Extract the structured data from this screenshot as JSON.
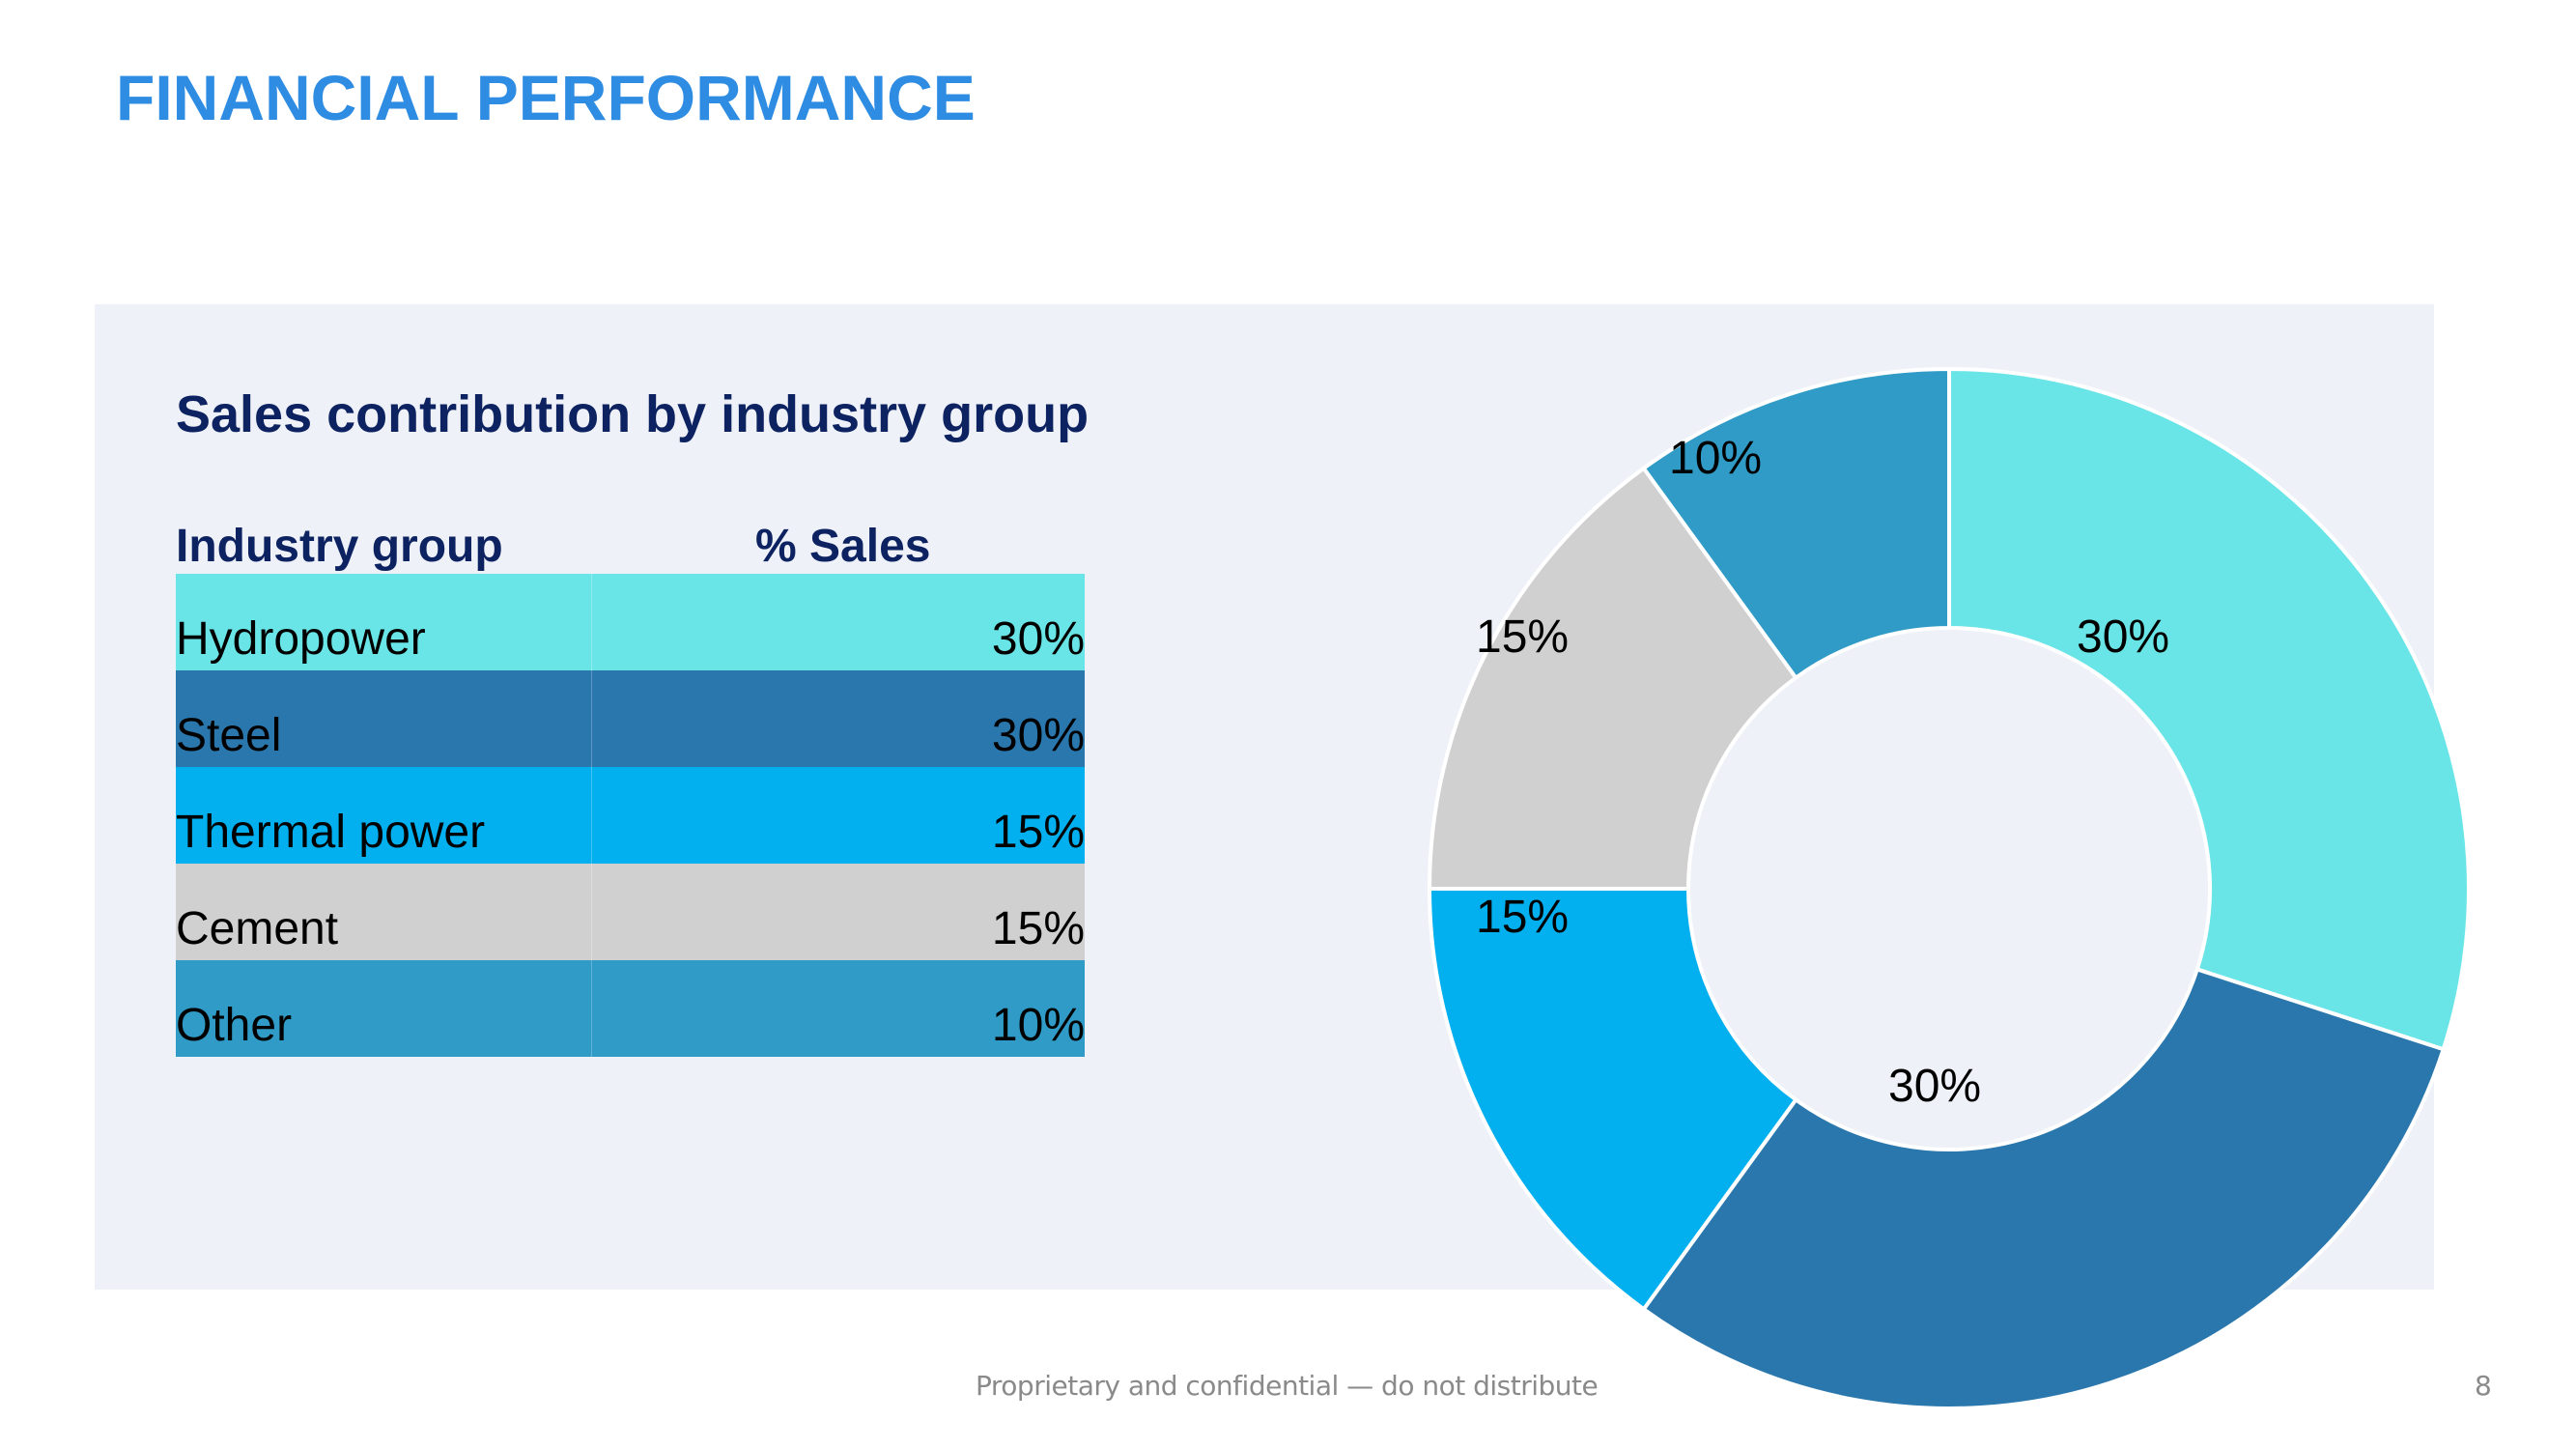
{
  "slide": {
    "title": "FINANCIAL PERFORMANCE",
    "subtitle": "Sales contribution by industry group",
    "footer": "Proprietary and confidential — do not distribute",
    "page_number": "8"
  },
  "colors": {
    "title": "#2e8ce2",
    "heading": "#0d2260",
    "panel_bg": "#eef1f8"
  },
  "table": {
    "headers": [
      "Industry group",
      "% Sales"
    ],
    "rows": [
      {
        "group": "Hydropower",
        "sales": "30%",
        "color": "#6ae5e7"
      },
      {
        "group": "Steel",
        "sales": "30%",
        "color": "#2a77ad"
      },
      {
        "group": "Thermal power",
        "sales": "15%",
        "color": "#02b0ef"
      },
      {
        "group": "Cement",
        "sales": "15%",
        "color": "#d1d0d1"
      },
      {
        "group": "Other",
        "sales": "10%",
        "color": "#2f9bc6"
      }
    ]
  },
  "chart_data": {
    "type": "pie",
    "variant": "donut",
    "title": "Sales contribution by industry group",
    "categories": [
      "Hydropower",
      "Steel",
      "Thermal power",
      "Cement",
      "Other"
    ],
    "values": [
      30,
      30,
      15,
      15,
      10
    ],
    "labels": [
      "30%",
      "30%",
      "15%",
      "15%",
      "10%"
    ],
    "colors": [
      "#6ae5e7",
      "#2a77ad",
      "#02b0ef",
      "#d1d0d1",
      "#2f9bc6"
    ],
    "start": "12 o'clock",
    "direction": "clockwise",
    "legend": "none"
  }
}
